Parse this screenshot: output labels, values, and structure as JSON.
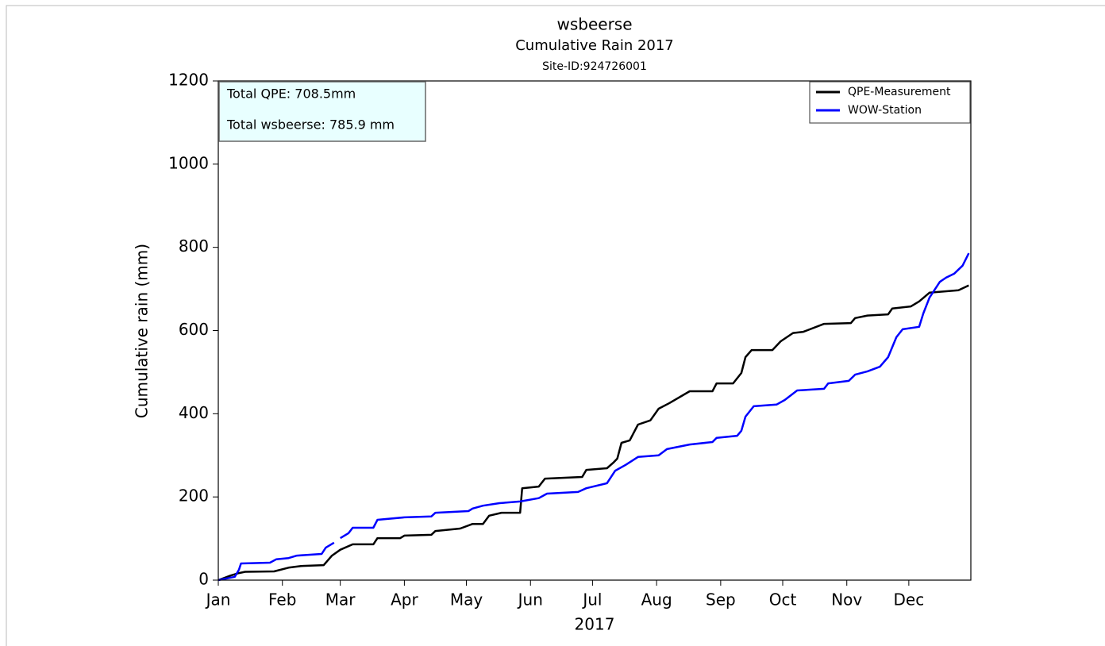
{
  "chart_data": {
    "type": "line",
    "title": "wsbeerse",
    "subtitle": "Cumulative Rain 2017",
    "site": "Site-ID:924726001",
    "xlabel": "2017",
    "ylabel": "Cumulative rain (mm)",
    "annotations": [
      "Total QPE: 708.5mm",
      "Total wsbeerse: 785.9 mm"
    ],
    "legend": "upper right",
    "xlim": [
      0,
      364
    ],
    "xticks": [
      {
        "value": 0,
        "label": "Jan"
      },
      {
        "value": 31,
        "label": "Feb"
      },
      {
        "value": 59,
        "label": "Mar"
      },
      {
        "value": 90,
        "label": "Apr"
      },
      {
        "value": 120,
        "label": "May"
      },
      {
        "value": 151,
        "label": "Jun"
      },
      {
        "value": 181,
        "label": "Jul"
      },
      {
        "value": 212,
        "label": "Aug"
      },
      {
        "value": 243,
        "label": "Sep"
      },
      {
        "value": 273,
        "label": "Oct"
      },
      {
        "value": 304,
        "label": "Nov"
      },
      {
        "value": 334,
        "label": "Dec"
      }
    ],
    "ylim": [
      0,
      1200
    ],
    "yticks": [
      0,
      200,
      400,
      600,
      800,
      1000,
      1200
    ],
    "series": [
      {
        "name": "QPE-Measurement",
        "color": "#000000",
        "x": [
          0,
          6,
          10,
          13,
          27,
          34,
          40,
          51,
          55,
          59,
          65,
          75,
          77,
          88,
          90,
          103,
          105,
          117,
          123,
          128,
          131,
          137,
          146,
          147,
          155,
          158,
          176,
          178,
          188,
          191,
          193,
          195,
          199,
          203,
          209,
          213,
          218,
          228,
          239,
          241,
          249,
          253,
          255,
          258,
          268,
          272,
          278,
          283,
          293,
          306,
          308,
          314,
          324,
          326,
          335,
          339,
          344,
          358,
          363
        ],
        "values": [
          0,
          11,
          17,
          20,
          21,
          30,
          34,
          36,
          59,
          73,
          86,
          86,
          101,
          101,
          107,
          109,
          118,
          124,
          135,
          135,
          155,
          162,
          162,
          221,
          225,
          244,
          248,
          265,
          269,
          282,
          292,
          330,
          336,
          374,
          384,
          412,
          425,
          454,
          454,
          473,
          473,
          498,
          536,
          553,
          553,
          574,
          594,
          597,
          616,
          618,
          630,
          636,
          639,
          653,
          658,
          670,
          691,
          697,
          708.5
        ]
      },
      {
        "name": "WOW-Station",
        "color": "#0000ff",
        "x": [
          0,
          8,
          10,
          11,
          25,
          28,
          34,
          38,
          50,
          52,
          56,
          57,
          59,
          63,
          65,
          75,
          77,
          90,
          103,
          105,
          121,
          123,
          128,
          136,
          146,
          155,
          159,
          174,
          178,
          188,
          192,
          197,
          203,
          213,
          217,
          228,
          239,
          241,
          251,
          253,
          255,
          259,
          270,
          274,
          280,
          293,
          295,
          305,
          308,
          314,
          320,
          324,
          328,
          331,
          339,
          341,
          344,
          349,
          352,
          356,
          360,
          363
        ],
        "values": [
          0,
          8,
          25,
          40,
          42,
          50,
          53,
          59,
          63,
          78,
          90,
          null,
          101,
          113,
          126,
          126,
          145,
          151,
          153,
          162,
          166,
          172,
          179,
          185,
          189,
          197,
          208,
          212,
          221,
          233,
          263,
          277,
          296,
          300,
          315,
          326,
          332,
          342,
          347,
          359,
          393,
          418,
          422,
          433,
          456,
          460,
          473,
          479,
          494,
          502,
          513,
          536,
          584,
          603,
          609,
          641,
          679,
          717,
          727,
          737,
          756,
          785.9
        ]
      }
    ]
  }
}
